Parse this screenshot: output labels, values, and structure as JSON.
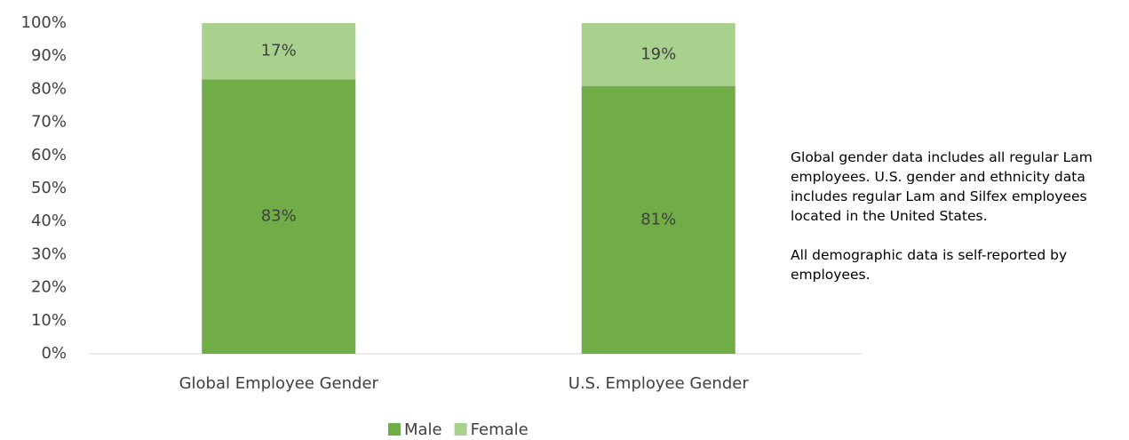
{
  "chart_data": {
    "type": "stacked_bar",
    "categories": [
      "Global Employee Gender",
      "U.S. Employee Gender"
    ],
    "series": [
      {
        "name": "Male",
        "color": "#70ad47",
        "values": [
          83,
          81
        ],
        "value_labels": [
          "83%",
          "81%"
        ]
      },
      {
        "name": "Female",
        "color": "#a9d18e",
        "values": [
          17,
          19
        ],
        "value_labels": [
          "17%",
          "19%"
        ]
      }
    ],
    "ylim": [
      0,
      100
    ],
    "yticks": [
      {
        "value": 0,
        "label": "0%"
      },
      {
        "value": 10,
        "label": "10%"
      },
      {
        "value": 20,
        "label": "20%"
      },
      {
        "value": 30,
        "label": "30%"
      },
      {
        "value": 40,
        "label": "40%"
      },
      {
        "value": 50,
        "label": "50%"
      },
      {
        "value": 60,
        "label": "60%"
      },
      {
        "value": 70,
        "label": "70%"
      },
      {
        "value": 80,
        "label": "80%"
      },
      {
        "value": 90,
        "label": "90%"
      },
      {
        "value": 100,
        "label": "100%"
      }
    ],
    "annotations": [
      "Global gender data includes all regular Lam employees. U.S. gender and ethnicity data includes regular Lam and Silfex employees located in the United States.",
      "All demographic data is self-reported by employees."
    ],
    "legend": "bottom"
  }
}
